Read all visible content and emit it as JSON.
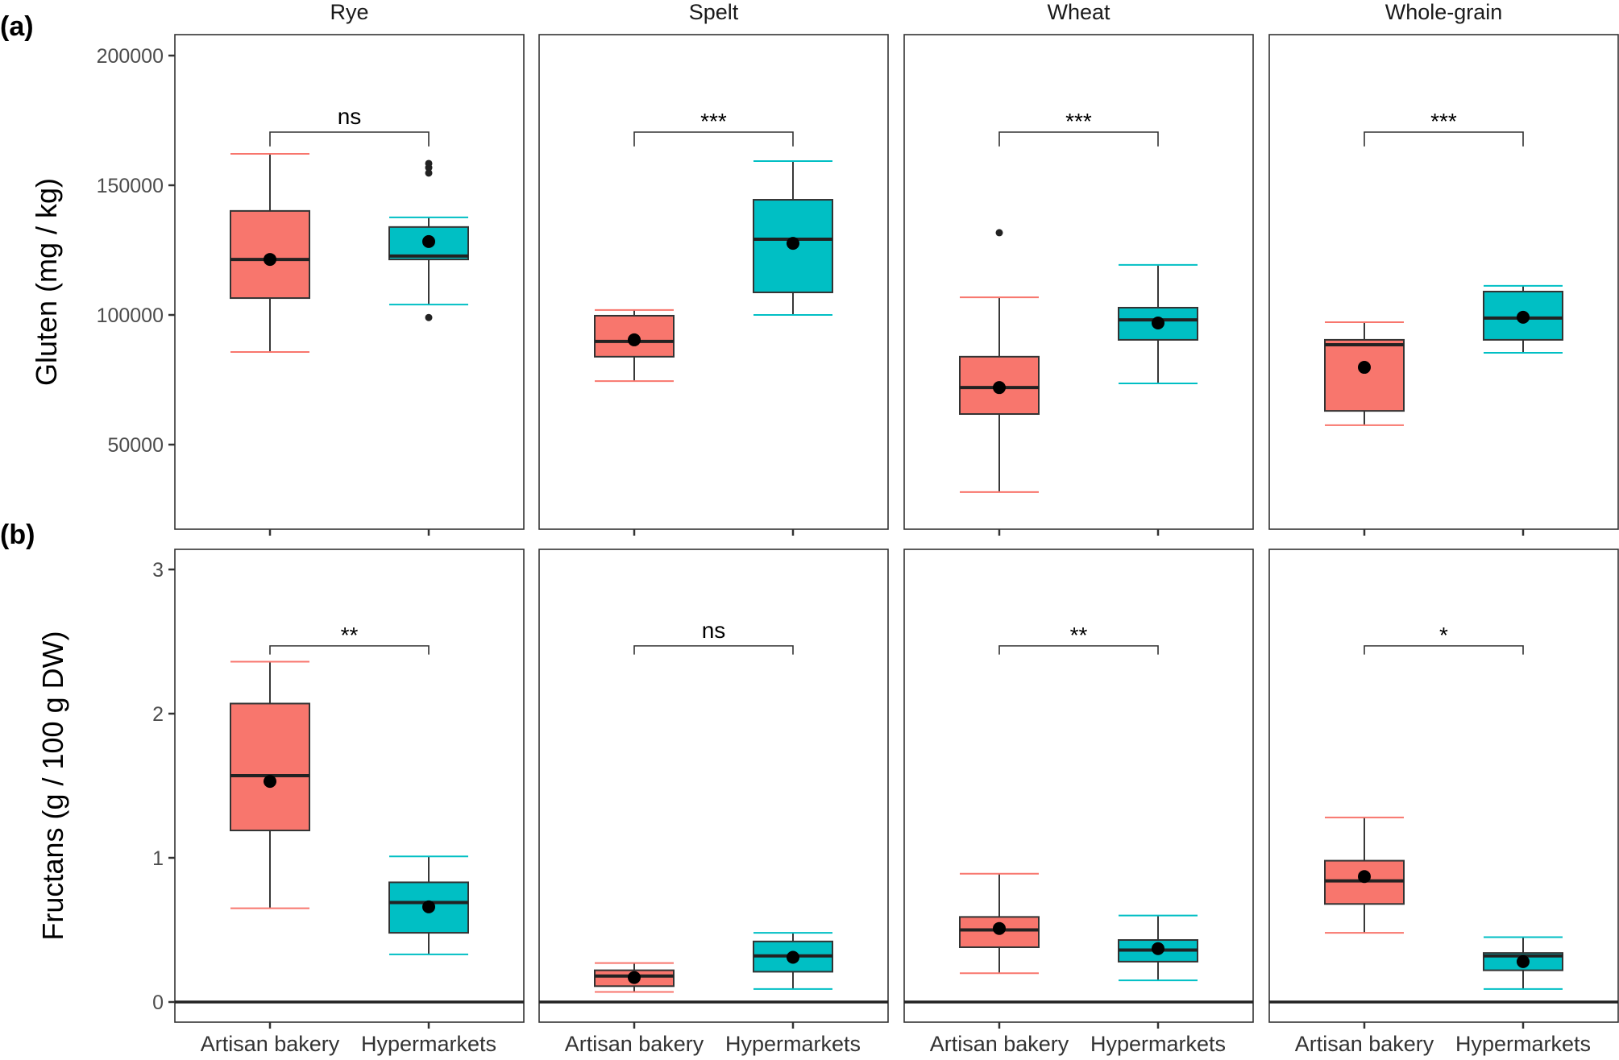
{
  "chart_data": [
    {
      "type": "box",
      "panel_tag": "(a)",
      "ylabel": "Gluten (mg / kg)",
      "ylim": [
        25000,
        210000
      ],
      "yticks": [
        50000,
        100000,
        150000,
        200000
      ],
      "ytick_labels": [
        "50000",
        "100000",
        "150000",
        "200000"
      ],
      "show_x_labels": false,
      "facets": [
        {
          "title": "Rye",
          "significance": "ns",
          "groups": [
            {
              "name": "Artisan bakery",
              "color": "#F8766D",
              "whisker_low": 85700,
              "q1": 106500,
              "median": 121400,
              "q3": 140100,
              "whisker_high": 162100,
              "mean": 121400,
              "outliers": []
            },
            {
              "name": "Hypermarkets",
              "color": "#00BFC4",
              "whisker_low": 104000,
              "q1": 121400,
              "median": 122700,
              "q3": 133900,
              "whisker_high": 137600,
              "mean": 128300,
              "outliers": [
                99000,
                154700,
                156800,
                158400
              ]
            }
          ]
        },
        {
          "title": "Spelt",
          "significance": "***",
          "groups": [
            {
              "name": "Artisan bakery",
              "color": "#F8766D",
              "whisker_low": 74500,
              "q1": 83900,
              "median": 89800,
              "q3": 99700,
              "whisker_high": 101900,
              "mean": 90400,
              "outliers": []
            },
            {
              "name": "Hypermarkets",
              "color": "#00BFC4",
              "whisker_low": 100000,
              "q1": 108700,
              "median": 129200,
              "q3": 144400,
              "whisker_high": 159300,
              "mean": 127600,
              "outliers": []
            }
          ]
        },
        {
          "title": "Wheat",
          "significance": "***",
          "groups": [
            {
              "name": "Artisan bakery",
              "color": "#F8766D",
              "whisker_low": 31700,
              "q1": 61800,
              "median": 72000,
              "q3": 83900,
              "whisker_high": 106800,
              "mean": 72000,
              "outliers": [
                131700
              ]
            },
            {
              "name": "Hypermarkets",
              "color": "#00BFC4",
              "whisker_low": 73600,
              "q1": 90400,
              "median": 98100,
              "q3": 102800,
              "whisker_high": 119300,
              "mean": 96900,
              "outliers": []
            }
          ]
        },
        {
          "title": "Whole-grain",
          "significance": "***",
          "groups": [
            {
              "name": "Artisan bakery",
              "color": "#F8766D",
              "whisker_low": 57500,
              "q1": 63000,
              "median": 88500,
              "q3": 90400,
              "whisker_high": 97200,
              "mean": 79800,
              "outliers": []
            },
            {
              "name": "Hypermarkets",
              "color": "#00BFC4",
              "whisker_low": 85400,
              "q1": 90400,
              "median": 98800,
              "q3": 109000,
              "whisker_high": 111200,
              "mean": 99100,
              "outliers": []
            }
          ]
        }
      ],
      "bracket_y": 170500,
      "bracket_drop": 5500
    },
    {
      "type": "box",
      "panel_tag": "(b)",
      "ylabel": "Fructans (g / 100 g DW)",
      "ylim": [
        -0.14,
        3.14
      ],
      "yticks": [
        0,
        1,
        2,
        3
      ],
      "ytick_labels": [
        "0",
        "1",
        "2",
        "3"
      ],
      "hline": 0,
      "show_x_labels": true,
      "facets": [
        {
          "title": "Rye",
          "significance": "**",
          "groups": [
            {
              "name": "Artisan bakery",
              "color": "#F8766D",
              "whisker_low": 0.65,
              "q1": 1.19,
              "median": 1.57,
              "q3": 2.07,
              "whisker_high": 2.36,
              "mean": 1.53,
              "outliers": []
            },
            {
              "name": "Hypermarkets",
              "color": "#00BFC4",
              "whisker_low": 0.33,
              "q1": 0.48,
              "median": 0.69,
              "q3": 0.83,
              "whisker_high": 1.01,
              "mean": 0.66,
              "outliers": []
            }
          ]
        },
        {
          "title": "Spelt",
          "significance": "ns",
          "groups": [
            {
              "name": "Artisan bakery",
              "color": "#F8766D",
              "whisker_low": 0.07,
              "q1": 0.11,
              "median": 0.18,
              "q3": 0.22,
              "whisker_high": 0.27,
              "mean": 0.17,
              "outliers": []
            },
            {
              "name": "Hypermarkets",
              "color": "#00BFC4",
              "whisker_low": 0.09,
              "q1": 0.21,
              "median": 0.32,
              "q3": 0.42,
              "whisker_high": 0.48,
              "mean": 0.31,
              "outliers": []
            }
          ]
        },
        {
          "title": "Wheat",
          "significance": "**",
          "groups": [
            {
              "name": "Artisan bakery",
              "color": "#F8766D",
              "whisker_low": 0.2,
              "q1": 0.38,
              "median": 0.5,
              "q3": 0.59,
              "whisker_high": 0.89,
              "mean": 0.51,
              "outliers": []
            },
            {
              "name": "Hypermarkets",
              "color": "#00BFC4",
              "whisker_low": 0.15,
              "q1": 0.28,
              "median": 0.36,
              "q3": 0.43,
              "whisker_high": 0.6,
              "mean": 0.37,
              "outliers": []
            }
          ]
        },
        {
          "title": "Whole-grain",
          "significance": "*",
          "groups": [
            {
              "name": "Artisan bakery",
              "color": "#F8766D",
              "whisker_low": 0.48,
              "q1": 0.68,
              "median": 0.84,
              "q3": 0.98,
              "whisker_high": 1.28,
              "mean": 0.87,
              "outliers": []
            },
            {
              "name": "Hypermarkets",
              "color": "#00BFC4",
              "whisker_low": 0.09,
              "q1": 0.22,
              "median": 0.32,
              "q3": 0.34,
              "whisker_high": 0.45,
              "mean": 0.28,
              "outliers": []
            }
          ]
        }
      ],
      "bracket_y": 2.47,
      "bracket_drop": 0.06
    }
  ],
  "colors": {
    "artisan": "#F8766D",
    "hypermarkets": "#00BFC4",
    "mean_point": "#000000",
    "box_outline": "#333333"
  }
}
